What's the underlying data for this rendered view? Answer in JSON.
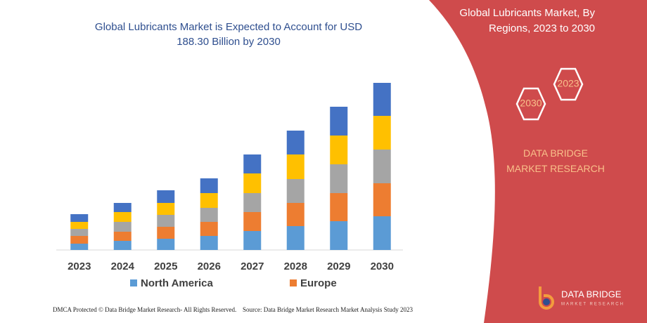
{
  "chart_data": {
    "type": "bar",
    "stacked": true,
    "title": "Global Lubricants Market is Expected to Account for USD 188.30 Billion by 2030",
    "categories": [
      "2023",
      "2024",
      "2025",
      "2026",
      "2027",
      "2028",
      "2029",
      "2030"
    ],
    "series": [
      {
        "name": "North America",
        "color": "#5b9bd5",
        "values": [
          9,
          13,
          16,
          20,
          27,
          34,
          41,
          48
        ]
      },
      {
        "name": "Europe",
        "color": "#ed7d31",
        "values": [
          11,
          13,
          17,
          20,
          27,
          33,
          40,
          47
        ]
      },
      {
        "color": "#a5a5a5",
        "values": [
          10,
          14,
          17,
          20,
          27,
          34,
          41,
          48
        ]
      },
      {
        "color": "#ffc000",
        "values": [
          10,
          14,
          17,
          21,
          28,
          35,
          41,
          48
        ]
      },
      {
        "color": "#4472c4",
        "values": [
          11,
          13,
          18,
          21,
          27,
          34,
          41,
          47
        ]
      }
    ]
  },
  "panel": {
    "title": "Global Lubricants Market, By Regions, 2023 to 2030",
    "badges": [
      "2023",
      "2030"
    ],
    "brand": "DATA BRIDGE MARKET RESEARCH"
  },
  "logo": {
    "name": "DATA BRIDGE",
    "tagline": "MARKET RESEARCH"
  },
  "footer": {
    "left": "DMCA Protected © Data Bridge Market Research-  All Rights Reserved.",
    "right": "Source: Data Bridge Market Research  Market Analysis Study 2023"
  }
}
